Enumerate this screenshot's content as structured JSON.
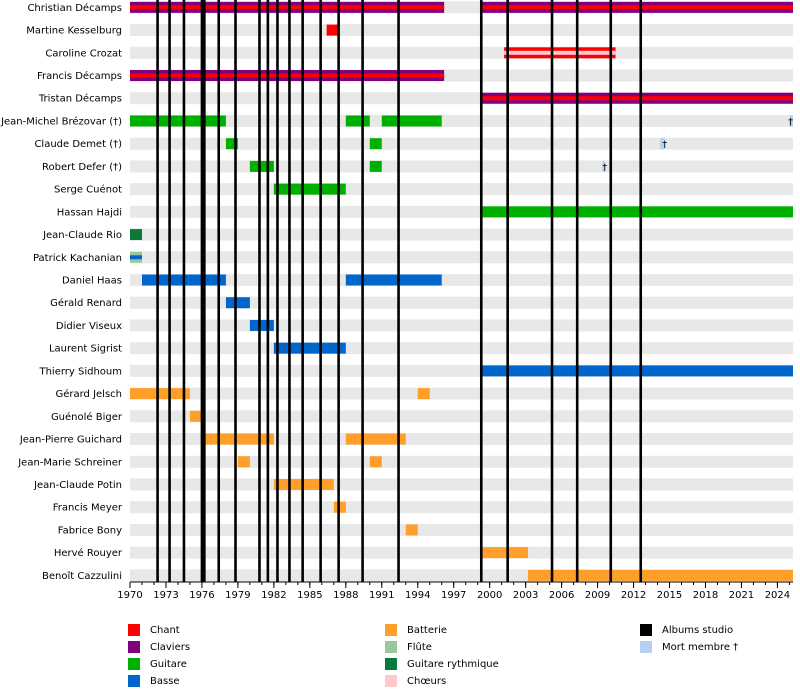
{
  "chart_data": {
    "type": "timeline",
    "x_axis": {
      "min": 1970,
      "max": 2025.3,
      "tick_labels": [
        1970,
        1973,
        1976,
        1979,
        1982,
        1985,
        1988,
        1991,
        1994,
        1997,
        2000,
        2003,
        2006,
        2009,
        2012,
        2015,
        2018,
        2021,
        2024
      ]
    },
    "album_lines": [
      1972.3,
      1973.3,
      1974.5,
      1976,
      1976.2,
      1977.4,
      1978.8,
      1980.8,
      1981.5,
      1982.3,
      1983.3,
      1984.4,
      1985.9,
      1987.4,
      1989.4,
      1992.4,
      1999.3,
      2001.5,
      2005.2,
      2007.3,
      2010.1,
      2012.6
    ],
    "members": [
      {
        "name": "Christian Décamps",
        "bars": [
          {
            "role": "claviers",
            "start": 1970,
            "end": 1996.2,
            "size": "full"
          },
          {
            "role": "chant",
            "start": 1970,
            "end": 1996.2,
            "size": "inner"
          },
          {
            "role": "claviers",
            "start": 1999.2,
            "end": 2025.3,
            "size": "full"
          },
          {
            "role": "chant",
            "start": 1999.2,
            "end": 2025.3,
            "size": "inner"
          }
        ]
      },
      {
        "name": "Martine Kesselburg",
        "bars": [
          {
            "role": "chant",
            "start": 1986.4,
            "end": 1987.4,
            "size": "full"
          }
        ]
      },
      {
        "name": "Caroline Crozat",
        "bars": [
          {
            "role": "chant",
            "start": 2001.2,
            "end": 2010.5,
            "size": "full"
          },
          {
            "role": "choeurs",
            "start": 2001.2,
            "end": 2010.5,
            "size": "inner"
          }
        ]
      },
      {
        "name": "Francis Décamps",
        "bars": [
          {
            "role": "claviers",
            "start": 1970,
            "end": 1996.2,
            "size": "full"
          },
          {
            "role": "chant",
            "start": 1970,
            "end": 1996.2,
            "size": "inner"
          }
        ]
      },
      {
        "name": "Tristan Décamps",
        "bars": [
          {
            "role": "claviers",
            "start": 1999.2,
            "end": 2025.3,
            "size": "full"
          },
          {
            "role": "chant",
            "start": 1999.2,
            "end": 2025.3,
            "size": "inner"
          }
        ]
      },
      {
        "name": "Jean-Michel Brézovar (†)",
        "bars": [
          {
            "role": "guitare",
            "start": 1970,
            "end": 1978,
            "size": "full"
          },
          {
            "role": "guitare",
            "start": 1988,
            "end": 1990,
            "size": "full"
          },
          {
            "role": "guitare",
            "start": 1991,
            "end": 1996,
            "size": "full"
          },
          {
            "role": "mort",
            "start": 2025.0,
            "end": 2025.3,
            "size": "full"
          }
        ],
        "death_mark": 2025.1
      },
      {
        "name": "Claude Demet (†)",
        "bars": [
          {
            "role": "guitare",
            "start": 1978,
            "end": 1979,
            "size": "full"
          },
          {
            "role": "guitare",
            "start": 1990,
            "end": 1991,
            "size": "full"
          },
          {
            "role": "mort",
            "start": 2014.2,
            "end": 2014.6,
            "size": "full"
          }
        ],
        "death_mark": 2014.6
      },
      {
        "name": "Robert Defer (†)",
        "bars": [
          {
            "role": "guitare",
            "start": 1980,
            "end": 1982,
            "size": "full"
          },
          {
            "role": "guitare",
            "start": 1990,
            "end": 1991,
            "size": "full"
          },
          {
            "role": "mort",
            "start": 2009.4,
            "end": 2009.6,
            "size": "full"
          }
        ],
        "death_mark": 2009.6
      },
      {
        "name": "Serge Cuénot",
        "bars": [
          {
            "role": "guitare",
            "start": 1982,
            "end": 1988,
            "size": "full"
          }
        ]
      },
      {
        "name": "Hassan Hajdi",
        "bars": [
          {
            "role": "guitare",
            "start": 1999.2,
            "end": 2025.3,
            "size": "full"
          }
        ]
      },
      {
        "name": "Jean-Claude Rio",
        "bars": [
          {
            "role": "guitare_rythmique",
            "start": 1970,
            "end": 1971,
            "size": "full"
          }
        ]
      },
      {
        "name": "Patrick Kachanian",
        "bars": [
          {
            "role": "flute",
            "start": 1970,
            "end": 1971,
            "size": "full"
          },
          {
            "role": "basse",
            "start": 1970,
            "end": 1971,
            "size": "inner"
          }
        ]
      },
      {
        "name": "Daniel Haas",
        "bars": [
          {
            "role": "basse",
            "start": 1971,
            "end": 1978,
            "size": "full"
          },
          {
            "role": "basse",
            "start": 1988,
            "end": 1996,
            "size": "full"
          }
        ]
      },
      {
        "name": "Gérald Renard",
        "bars": [
          {
            "role": "basse",
            "start": 1978,
            "end": 1980,
            "size": "full"
          }
        ]
      },
      {
        "name": "Didier Viseux",
        "bars": [
          {
            "role": "basse",
            "start": 1980,
            "end": 1982,
            "size": "full"
          }
        ]
      },
      {
        "name": "Laurent Sigrist",
        "bars": [
          {
            "role": "basse",
            "start": 1982,
            "end": 1988,
            "size": "full"
          }
        ]
      },
      {
        "name": "Thierry Sidhoum",
        "bars": [
          {
            "role": "basse",
            "start": 1999.2,
            "end": 2025.3,
            "size": "full"
          }
        ]
      },
      {
        "name": "Gérard Jelsch",
        "bars": [
          {
            "role": "batterie",
            "start": 1970,
            "end": 1975,
            "size": "full"
          },
          {
            "role": "batterie",
            "start": 1994,
            "end": 1995,
            "size": "full"
          }
        ]
      },
      {
        "name": "Guénolé Biger",
        "bars": [
          {
            "role": "batterie",
            "start": 1975,
            "end": 1976,
            "size": "full"
          }
        ]
      },
      {
        "name": "Jean-Pierre Guichard",
        "bars": [
          {
            "role": "batterie",
            "start": 1976,
            "end": 1982,
            "size": "full"
          },
          {
            "role": "batterie",
            "start": 1988,
            "end": 1993,
            "size": "full"
          }
        ]
      },
      {
        "name": "Jean-Marie Schreiner",
        "bars": [
          {
            "role": "batterie",
            "start": 1979,
            "end": 1980,
            "size": "full"
          },
          {
            "role": "batterie",
            "start": 1990,
            "end": 1991,
            "size": "full"
          }
        ]
      },
      {
        "name": "Jean-Claude Potin",
        "bars": [
          {
            "role": "batterie",
            "start": 1982,
            "end": 1987,
            "size": "full"
          }
        ]
      },
      {
        "name": "Francis Meyer",
        "bars": [
          {
            "role": "batterie",
            "start": 1987,
            "end": 1988,
            "size": "full"
          }
        ]
      },
      {
        "name": "Fabrice Bony",
        "bars": [
          {
            "role": "batterie",
            "start": 1993,
            "end": 1994,
            "size": "full"
          }
        ]
      },
      {
        "name": "Hervé Rouyer",
        "bars": [
          {
            "role": "batterie",
            "start": 1999.2,
            "end": 2003.2,
            "size": "full"
          }
        ]
      },
      {
        "name": "Benoît Cazzulini",
        "bars": [
          {
            "role": "batterie",
            "start": 2003.2,
            "end": 2025.3,
            "size": "full"
          }
        ]
      }
    ],
    "legend": [
      {
        "key": "chant",
        "label": "Chant",
        "color": "#ff0000"
      },
      {
        "key": "claviers",
        "label": "Claviers",
        "color": "#800080"
      },
      {
        "key": "guitare",
        "label": "Guitare",
        "color": "#00b000"
      },
      {
        "key": "basse",
        "label": "Basse",
        "color": "#0066cc"
      },
      {
        "key": "batterie",
        "label": "Batterie",
        "color": "#ff9f2a"
      },
      {
        "key": "flute",
        "label": "Flûte",
        "color": "#9bc89b"
      },
      {
        "key": "guitare_rythmique",
        "label": "Guitare rythmique",
        "color": "#0a7a3a"
      },
      {
        "key": "choeurs",
        "label": "Chœurs",
        "color": "#ffc8cc"
      },
      {
        "key": "albums",
        "label": "Albums studio",
        "color": "#000000"
      },
      {
        "key": "mort",
        "label": "Mort membre †",
        "color": "#b8cff5"
      }
    ],
    "death_glyph": "†",
    "grid": true,
    "legend_position": "bottom"
  }
}
